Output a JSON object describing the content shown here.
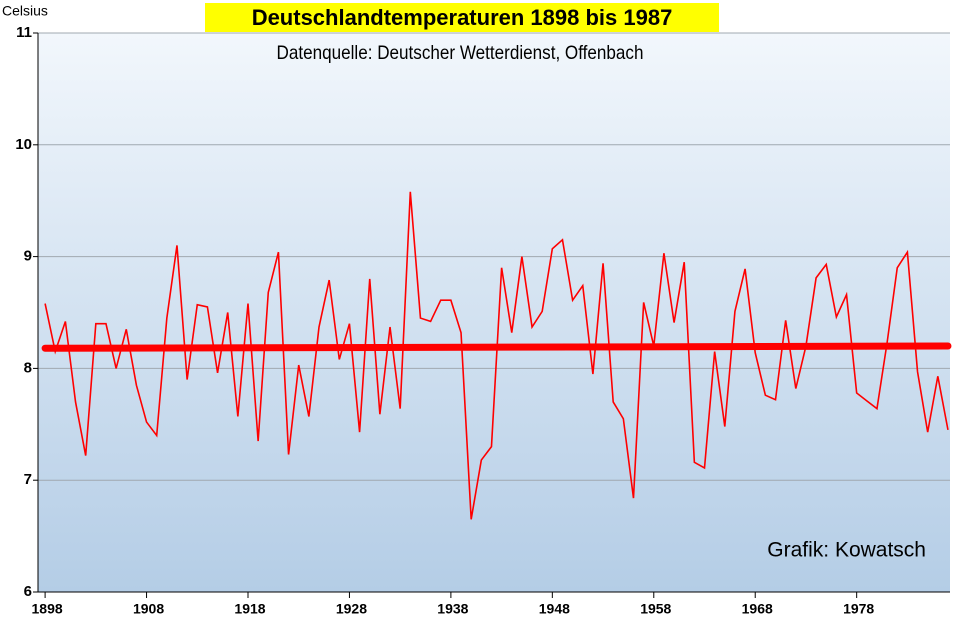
{
  "chart_data": {
    "type": "line",
    "title": "Deutschlandtemperaturen 1898 bis 1987",
    "subtitle": "Datenquelle: Deutscher Wetterdienst, Offenbach",
    "ylabel": "Celsius",
    "annotation": "Grafik: Kowatsch",
    "x": [
      1898,
      1899,
      1900,
      1901,
      1902,
      1903,
      1904,
      1905,
      1906,
      1907,
      1908,
      1909,
      1910,
      1911,
      1912,
      1913,
      1914,
      1915,
      1916,
      1917,
      1918,
      1919,
      1920,
      1921,
      1922,
      1923,
      1924,
      1925,
      1926,
      1927,
      1928,
      1929,
      1930,
      1931,
      1932,
      1933,
      1934,
      1935,
      1936,
      1937,
      1938,
      1939,
      1940,
      1941,
      1942,
      1943,
      1944,
      1945,
      1946,
      1947,
      1948,
      1949,
      1950,
      1951,
      1952,
      1953,
      1954,
      1955,
      1956,
      1957,
      1958,
      1959,
      1960,
      1961,
      1962,
      1963,
      1964,
      1965,
      1966,
      1967,
      1968,
      1969,
      1970,
      1971,
      1972,
      1973,
      1974,
      1975,
      1976,
      1977,
      1978,
      1979,
      1980,
      1981,
      1982,
      1983,
      1984,
      1985,
      1986,
      1987
    ],
    "series": [
      {
        "color": "#ff0000",
        "values": [
          8.58,
          8.15,
          8.42,
          7.7,
          7.22,
          8.4,
          8.4,
          8.0,
          8.35,
          7.85,
          7.52,
          7.4,
          8.45,
          9.1,
          7.9,
          8.57,
          8.55,
          7.96,
          8.5,
          7.57,
          8.58,
          7.35,
          8.68,
          9.04,
          7.23,
          8.03,
          7.57,
          8.37,
          8.79,
          8.08,
          8.4,
          7.43,
          8.8,
          7.59,
          8.37,
          7.64,
          9.58,
          8.45,
          8.42,
          8.61,
          8.61,
          8.32,
          6.65,
          7.18,
          7.3,
          8.9,
          8.32,
          9.0,
          8.37,
          8.51,
          9.07,
          9.15,
          8.61,
          8.74,
          7.95,
          8.94,
          7.7,
          7.55,
          6.84,
          8.59,
          8.2,
          9.03,
          8.41,
          8.95,
          7.16,
          7.11,
          8.15,
          7.48,
          8.51,
          8.89,
          8.14,
          7.76,
          7.72,
          8.43,
          7.82,
          8.2,
          8.81,
          8.93,
          8.46,
          8.66,
          7.78,
          7.71,
          7.64,
          8.23,
          8.9,
          9.04,
          7.97,
          7.43,
          7.93,
          7.45
        ]
      }
    ],
    "trend": {
      "color": "#ff0000",
      "x": [
        1898,
        1987
      ],
      "values": [
        8.18,
        8.2
      ]
    },
    "xlim": [
      1897.3,
      1987.2
    ],
    "xticks": [
      1898,
      1908,
      1918,
      1928,
      1938,
      1948,
      1958,
      1968,
      1978
    ],
    "ylim": [
      6,
      11
    ],
    "yticks": [
      6,
      7,
      8,
      9,
      10,
      11
    ],
    "grid": true
  }
}
